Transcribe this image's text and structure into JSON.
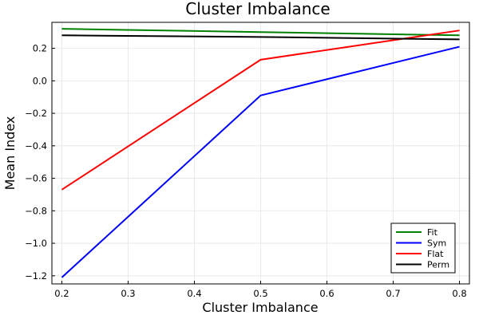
{
  "chart_data": {
    "type": "line",
    "title": "Cluster Imbalance",
    "xlabel": "Cluster Imbalance",
    "ylabel": "Mean Index",
    "xlim": [
      0.185,
      0.815
    ],
    "ylim": [
      -1.25,
      0.36
    ],
    "xticks": [
      0.2,
      0.3,
      0.4,
      0.5,
      0.6,
      0.7,
      0.8
    ],
    "xtick_labels": [
      "0.2",
      "0.3",
      "0.4",
      "0.5",
      "0.6",
      "0.7",
      "0.8"
    ],
    "yticks": [
      -1.2,
      -1.0,
      -0.8,
      -0.6,
      -0.4,
      -0.2,
      0.0,
      0.2
    ],
    "ytick_labels": [
      "−1.2",
      "−1.0",
      "−0.8",
      "−0.6",
      "−0.4",
      "−0.2",
      "0.0",
      "0.2"
    ],
    "grid": true,
    "legend_position": "bottom-right",
    "x": [
      0.2,
      0.5,
      0.8
    ],
    "series": [
      {
        "name": "Fit",
        "color": "#008000",
        "values": [
          0.32,
          0.3,
          0.28
        ]
      },
      {
        "name": "Sym",
        "color": "#0000ff",
        "values": [
          -1.21,
          -0.09,
          0.21
        ]
      },
      {
        "name": "Flat",
        "color": "#ff0000",
        "values": [
          -0.67,
          0.13,
          0.31
        ]
      },
      {
        "name": "Perm",
        "color": "#000000",
        "values": [
          0.28,
          0.27,
          0.255
        ]
      }
    ]
  }
}
